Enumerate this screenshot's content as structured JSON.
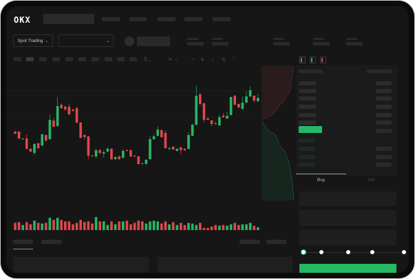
{
  "header": {
    "logo": "OKX"
  },
  "market_bar": {
    "trading_type": "Spot Trading"
  },
  "order_form": {
    "tabs": [
      "Buy",
      "Sell"
    ],
    "active_tab": "Buy",
    "slider_percent": 0
  },
  "colors": {
    "up": "#25b864",
    "down": "#e0464e",
    "background": "#161616",
    "panel": "#1c1c1c"
  },
  "candles": [
    [
      58,
      59,
      54,
      55
    ],
    [
      58,
      59,
      47,
      48
    ],
    [
      47,
      48,
      46,
      48
    ],
    [
      48,
      54,
      32,
      33
    ],
    [
      33,
      34,
      28,
      29
    ],
    [
      27,
      41,
      24,
      40
    ],
    [
      41,
      42,
      33,
      34
    ],
    [
      38,
      55,
      37,
      54
    ],
    [
      53,
      54,
      43,
      45
    ],
    [
      47,
      83,
      46,
      75
    ],
    [
      74,
      78,
      64,
      65
    ],
    [
      66,
      108,
      65,
      95
    ],
    [
      97,
      99,
      91,
      92
    ],
    [
      94,
      96,
      88,
      90
    ],
    [
      94,
      99,
      82,
      83
    ],
    [
      90,
      91,
      87,
      88
    ],
    [
      92,
      94,
      70,
      71
    ],
    [
      71,
      72,
      48,
      49
    ],
    [
      53,
      54,
      46,
      50
    ],
    [
      51,
      52,
      18,
      23
    ],
    [
      23,
      24,
      21,
      22
    ],
    [
      22,
      33,
      19,
      31
    ],
    [
      31,
      33,
      25,
      27
    ],
    [
      26,
      31,
      20,
      28
    ],
    [
      29,
      35,
      28,
      33
    ],
    [
      33,
      34,
      16,
      18
    ],
    [
      18,
      22,
      17,
      21
    ],
    [
      22,
      23,
      17,
      18
    ],
    [
      20,
      32,
      19,
      30
    ],
    [
      31,
      32,
      29,
      30
    ],
    [
      31,
      32,
      21,
      22
    ],
    [
      23,
      24,
      21,
      22
    ],
    [
      22,
      23,
      10,
      11
    ],
    [
      12,
      13,
      10,
      11
    ],
    [
      11,
      18,
      10,
      17
    ],
    [
      18,
      52,
      17,
      47
    ],
    [
      47,
      54,
      46,
      51
    ],
    [
      52,
      66,
      51,
      61
    ],
    [
      60,
      61,
      49,
      50
    ],
    [
      56,
      60,
      33,
      34
    ],
    [
      33,
      36,
      30,
      34
    ],
    [
      36,
      37,
      31,
      32
    ],
    [
      30,
      34,
      29,
      33
    ],
    [
      35,
      36,
      25,
      31
    ],
    [
      33,
      34,
      30,
      31
    ],
    [
      33,
      57,
      32,
      53
    ],
    [
      52,
      69,
      51,
      68
    ],
    [
      68,
      125,
      67,
      110
    ],
    [
      112,
      115,
      96,
      98
    ],
    [
      99,
      100,
      71,
      75
    ],
    [
      77,
      80,
      74,
      75
    ],
    [
      74,
      75,
      66,
      69
    ],
    [
      70,
      73,
      68,
      69
    ],
    [
      67,
      82,
      66,
      79
    ],
    [
      81,
      85,
      78,
      79
    ],
    [
      77,
      87,
      76,
      81
    ],
    [
      82,
      109,
      81,
      108
    ],
    [
      110,
      111,
      96,
      97
    ],
    [
      98,
      99,
      92,
      93
    ],
    [
      91,
      109,
      90,
      100
    ],
    [
      100,
      117,
      99,
      109
    ],
    [
      109,
      124,
      108,
      118
    ],
    [
      110,
      111,
      100,
      103
    ],
    [
      102,
      113,
      101,
      107
    ]
  ],
  "volumes": [
    10,
    11,
    7,
    11,
    8,
    13,
    10,
    9,
    10,
    17,
    14,
    17,
    14,
    12,
    12,
    8,
    10,
    14,
    11,
    12,
    9,
    18,
    12,
    12,
    7,
    12,
    8,
    12,
    12,
    13,
    8,
    10,
    13,
    12,
    9,
    12,
    13,
    12,
    9,
    12,
    8,
    11,
    7,
    10,
    7,
    10,
    9,
    7,
    10,
    3,
    3,
    5,
    7,
    6,
    7,
    6,
    8,
    10,
    7,
    8,
    8,
    10,
    6,
    4
  ]
}
